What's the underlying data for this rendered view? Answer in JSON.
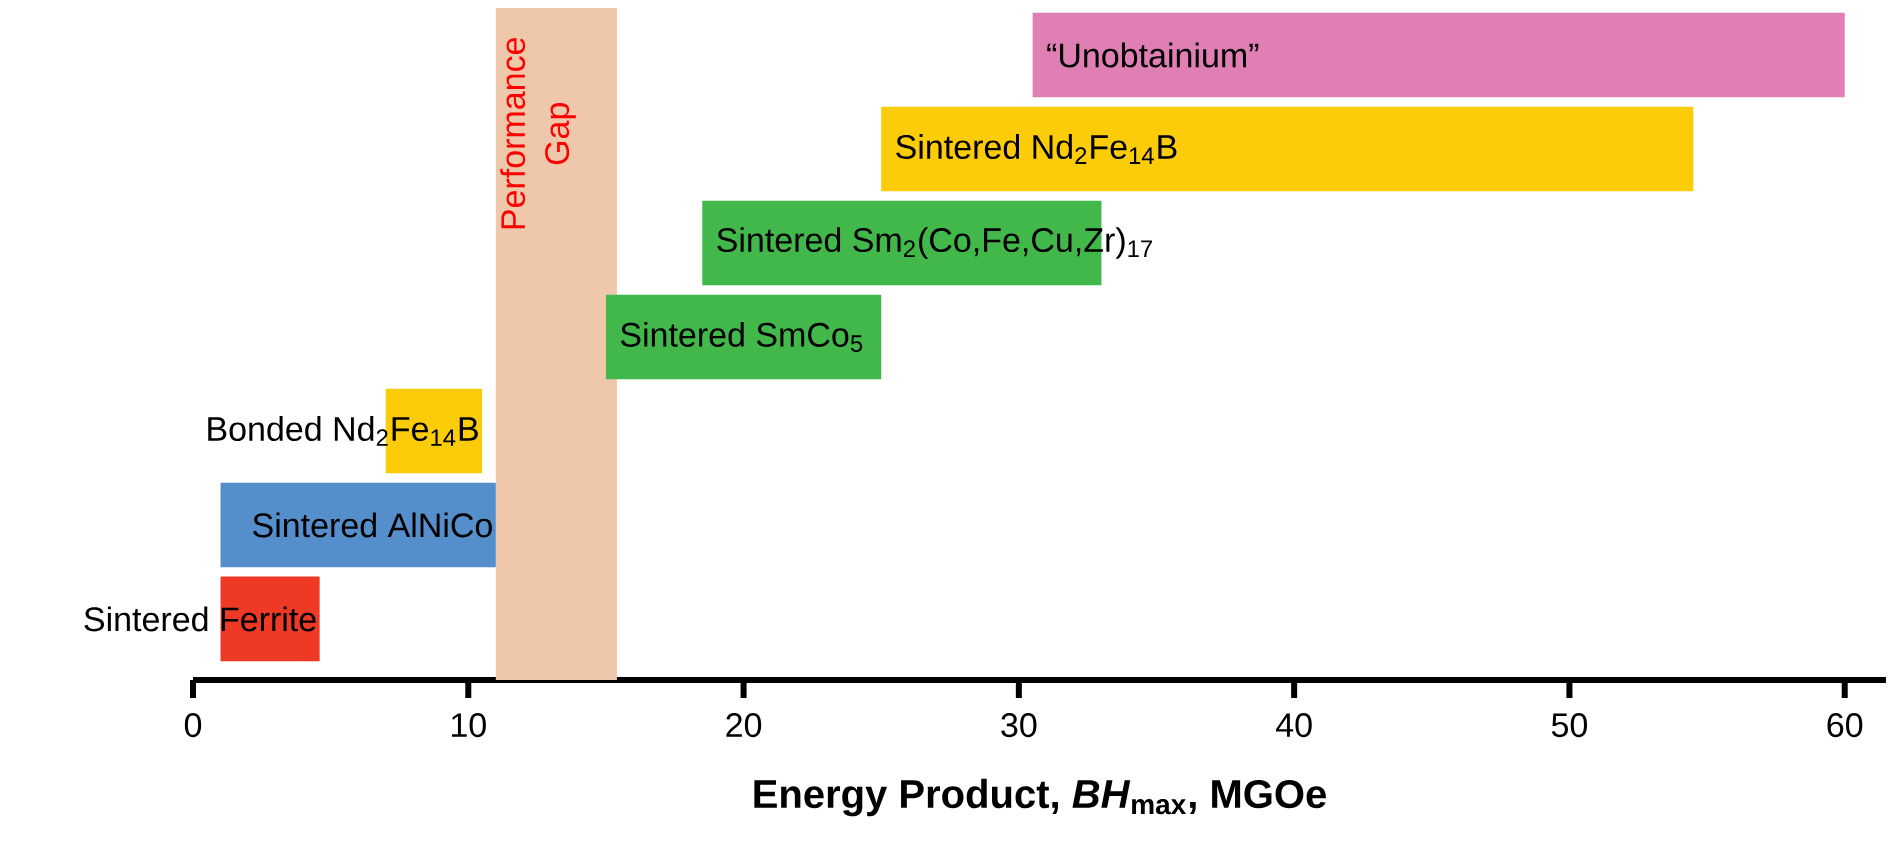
{
  "chart_data": {
    "type": "bar",
    "orientation": "horizontal",
    "categories": [
      "“Unobtainium”",
      "Sintered Nd$_{2}$Fe$_{14}$B",
      "Sintered Sm$_{2}$(Co,Fe,Cu,Zr)$_{17}$",
      "Sintered SmCo$_{5}$",
      "Bonded Nd$_{2}$Fe$_{14}$B",
      "Sintered AlNiCo",
      "Sintered Ferrite"
    ],
    "base": [
      30.5,
      25,
      18.5,
      15,
      7,
      1,
      1
    ],
    "values": [
      29.5,
      29.5,
      14.5,
      10,
      3.5,
      10,
      3.6
    ],
    "colors": [
      "#e07fb3",
      "#fdcc08",
      "#42b74a",
      "#42b74a",
      "#fdcc08",
      "#548fcc",
      "#ee3a24"
    ],
    "xlim": [
      0,
      61.5
    ],
    "xticks": [
      0,
      10,
      20,
      30,
      40,
      50,
      60
    ],
    "xlabel": "Energy Product, *BH*$_{max}$, MGOe",
    "bands": [
      {
        "axis": "x",
        "from": 11,
        "to": 15.4,
        "label": "Performance Gap",
        "color": "#efc8ab"
      }
    ]
  }
}
